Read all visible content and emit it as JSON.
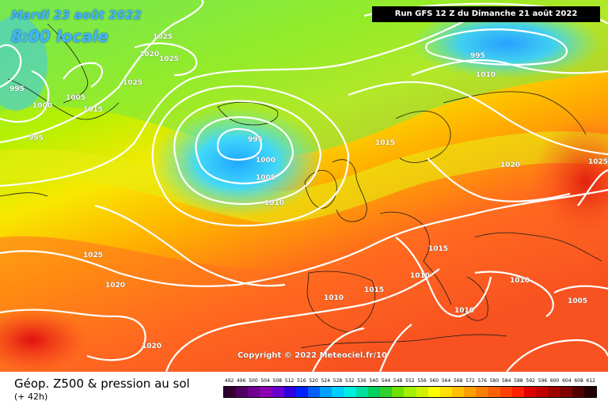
{
  "header": {
    "date": "Mardi 23 août 2022",
    "time": "8:00 locale",
    "run": "Run GFS 12 Z du Dimanche 21 août 2022"
  },
  "copyright": "Copyright © 2022 Meteociel.fr/10",
  "footer": {
    "product": "Géop. Z500 & pression au sol",
    "lead_time": "(+ 42h)"
  },
  "scale": {
    "ticks": [
      "492",
      "496",
      "500",
      "504",
      "508",
      "512",
      "516",
      "520",
      "524",
      "528",
      "532",
      "536",
      "540",
      "544",
      "548",
      "552",
      "556",
      "560",
      "564",
      "568",
      "572",
      "576",
      "580",
      "584",
      "588",
      "592",
      "596",
      "600",
      "604",
      "608",
      "612"
    ],
    "colors": [
      "#300030",
      "#500060",
      "#700090",
      "#8a00b0",
      "#6a00d0",
      "#3000e0",
      "#0020ff",
      "#0060ff",
      "#00a0ff",
      "#00d0ff",
      "#00f0e0",
      "#00e0a0",
      "#00d060",
      "#30d030",
      "#70e000",
      "#a0f000",
      "#d0f000",
      "#ffff00",
      "#ffe000",
      "#ffc000",
      "#ffa000",
      "#ff8000",
      "#ff6000",
      "#ff4000",
      "#ff2000",
      "#e00000",
      "#c00000",
      "#a00000",
      "#800000",
      "#500000",
      "#200000"
    ]
  },
  "isobars": [
    {
      "id": "iso-1025-a",
      "label": "1025"
    },
    {
      "id": "iso-1020-a",
      "label": "1020"
    },
    {
      "id": "iso-1025-b",
      "label": "1025"
    },
    {
      "id": "iso-1025-c",
      "label": "1025"
    },
    {
      "id": "iso-995-a",
      "label": "995"
    },
    {
      "id": "iso-1000-a",
      "label": "1000"
    },
    {
      "id": "iso-1005-a",
      "label": "1005"
    },
    {
      "id": "iso-1015-a",
      "label": "1015"
    },
    {
      "id": "iso-995-b",
      "label": "995"
    },
    {
      "id": "iso-995-c",
      "label": "995"
    },
    {
      "id": "iso-1000-b",
      "label": "1000"
    },
    {
      "id": "iso-1005-b",
      "label": "1005"
    },
    {
      "id": "iso-1010-a",
      "label": "1010"
    },
    {
      "id": "iso-1015-b",
      "label": "1015"
    },
    {
      "id": "iso-995-d",
      "label": "995"
    },
    {
      "id": "iso-1010-b",
      "label": "1010"
    },
    {
      "id": "iso-1020-b",
      "label": "1020"
    },
    {
      "id": "iso-1025-d",
      "label": "1025"
    },
    {
      "id": "iso-1025-e",
      "label": "1025"
    },
    {
      "id": "iso-1020-c",
      "label": "1020"
    },
    {
      "id": "iso-1015-c",
      "label": "1015"
    },
    {
      "id": "iso-1010-c",
      "label": "1010"
    },
    {
      "id": "iso-1015-d",
      "label": "1015"
    },
    {
      "id": "iso-1010-d",
      "label": "1010"
    },
    {
      "id": "iso-1010-e",
      "label": "1010"
    },
    {
      "id": "iso-1010-f",
      "label": "1010"
    },
    {
      "id": "iso-1005-c",
      "label": "1005"
    },
    {
      "id": "iso-1020-d",
      "label": "1020"
    }
  ]
}
